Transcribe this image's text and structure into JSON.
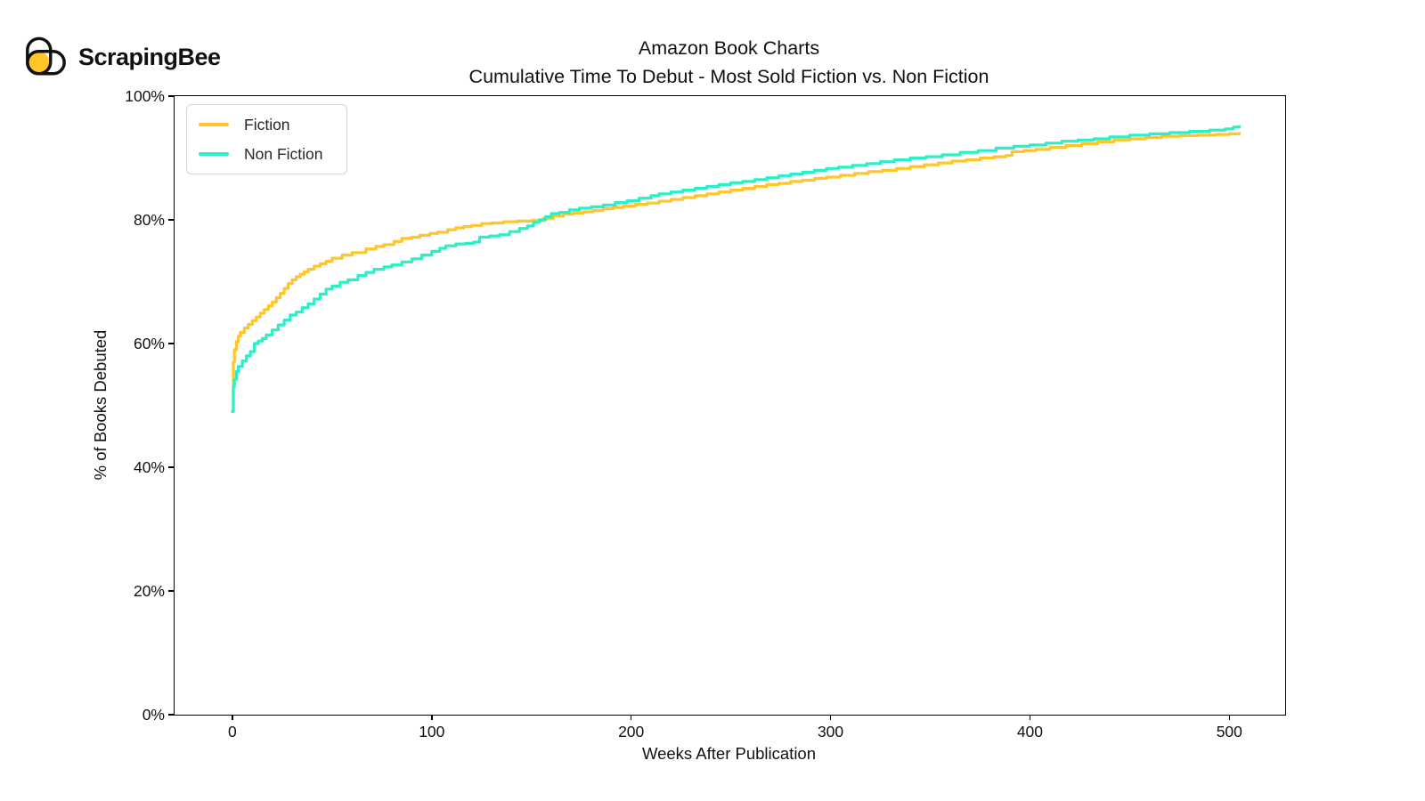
{
  "logo": {
    "text": "ScrapingBee",
    "icon_color": "#FFC52B",
    "outline_color": "#111111"
  },
  "chart_data": {
    "type": "line",
    "title": "Amazon Book Charts",
    "subtitle": "Cumulative Time To Debut - Most Sold Fiction vs. Non Fiction",
    "xlabel": "Weeks After Publication",
    "ylabel": "% of Books Debuted",
    "xlim": [
      -29,
      528
    ],
    "ylim": [
      0,
      100
    ],
    "x_ticks": [
      0,
      100,
      200,
      300,
      400,
      500
    ],
    "y_ticks": [
      0,
      20,
      40,
      60,
      80,
      100
    ],
    "y_tick_suffix": "%",
    "grid": false,
    "legend_position": "upper-left",
    "line_style": "step-post",
    "axis_color": "#000000",
    "series": [
      {
        "name": "Fiction",
        "color": "#FFC52B",
        "points": [
          [
            0,
            49
          ],
          [
            0.5,
            57
          ],
          [
            1,
            59
          ],
          [
            2,
            60.3
          ],
          [
            3,
            61.2
          ],
          [
            4,
            61.8
          ],
          [
            6,
            62.5
          ],
          [
            8,
            63.1
          ],
          [
            10,
            63.7
          ],
          [
            12,
            64.3
          ],
          [
            14,
            64.9
          ],
          [
            16,
            65.5
          ],
          [
            18,
            66.1
          ],
          [
            20,
            66.7
          ],
          [
            22,
            67.4
          ],
          [
            24,
            68.1
          ],
          [
            26,
            68.9
          ],
          [
            28,
            69.7
          ],
          [
            30,
            70.3
          ],
          [
            32,
            70.8
          ],
          [
            34,
            71.2
          ],
          [
            36,
            71.6
          ],
          [
            38,
            72.0
          ],
          [
            41,
            72.5
          ],
          [
            44,
            72.9
          ],
          [
            47,
            73.3
          ],
          [
            50,
            73.8
          ],
          [
            55,
            74.3
          ],
          [
            60,
            74.7
          ],
          [
            67,
            75.3
          ],
          [
            72,
            75.7
          ],
          [
            76,
            76.0
          ],
          [
            81,
            76.5
          ],
          [
            85,
            77.0
          ],
          [
            90,
            77.2
          ],
          [
            94,
            77.5
          ],
          [
            99,
            77.8
          ],
          [
            103,
            78.0
          ],
          [
            108,
            78.4
          ],
          [
            112,
            78.7
          ],
          [
            116,
            78.9
          ],
          [
            120,
            79.1
          ],
          [
            125,
            79.4
          ],
          [
            130,
            79.5
          ],
          [
            136,
            79.7
          ],
          [
            143,
            79.8
          ],
          [
            150,
            79.9
          ],
          [
            156,
            80.2
          ],
          [
            161,
            80.6
          ],
          [
            166,
            80.9
          ],
          [
            171,
            81.1
          ],
          [
            176,
            81.3
          ],
          [
            181,
            81.5
          ],
          [
            186,
            81.8
          ],
          [
            191,
            82.0
          ],
          [
            196,
            82.2
          ],
          [
            202,
            82.5
          ],
          [
            208,
            82.7
          ],
          [
            214,
            83.0
          ],
          [
            220,
            83.3
          ],
          [
            226,
            83.6
          ],
          [
            232,
            83.9
          ],
          [
            238,
            84.2
          ],
          [
            244,
            84.5
          ],
          [
            250,
            84.8
          ],
          [
            256,
            85.1
          ],
          [
            262,
            85.4
          ],
          [
            268,
            85.7
          ],
          [
            274,
            85.9
          ],
          [
            280,
            86.2
          ],
          [
            286,
            86.4
          ],
          [
            292,
            86.7
          ],
          [
            298,
            86.9
          ],
          [
            305,
            87.2
          ],
          [
            312,
            87.5
          ],
          [
            319,
            87.8
          ],
          [
            326,
            88.0
          ],
          [
            333,
            88.3
          ],
          [
            340,
            88.6
          ],
          [
            347,
            88.9
          ],
          [
            354,
            89.2
          ],
          [
            361,
            89.5
          ],
          [
            368,
            89.7
          ],
          [
            375,
            90.0
          ],
          [
            382,
            90.2
          ],
          [
            388,
            90.4
          ],
          [
            391,
            91.0
          ],
          [
            397,
            91.2
          ],
          [
            403,
            91.4
          ],
          [
            410,
            91.7
          ],
          [
            418,
            92.0
          ],
          [
            426,
            92.3
          ],
          [
            434,
            92.6
          ],
          [
            442,
            92.9
          ],
          [
            450,
            93.1
          ],
          [
            458,
            93.3
          ],
          [
            466,
            93.5
          ],
          [
            475,
            93.6
          ],
          [
            484,
            93.7
          ],
          [
            493,
            93.8
          ],
          [
            500,
            93.9
          ],
          [
            505,
            94.0
          ]
        ]
      },
      {
        "name": "Non Fiction",
        "color": "#2BEFC5",
        "points": [
          [
            0,
            49
          ],
          [
            0.5,
            53
          ],
          [
            1,
            54.2
          ],
          [
            2,
            55.5
          ],
          [
            3,
            56.3
          ],
          [
            5,
            57.2
          ],
          [
            7,
            58.0
          ],
          [
            9,
            58.7
          ],
          [
            11,
            60.0
          ],
          [
            13,
            60.4
          ],
          [
            15,
            60.8
          ],
          [
            17,
            61.4
          ],
          [
            20,
            62.2
          ],
          [
            23,
            63.0
          ],
          [
            26,
            63.8
          ],
          [
            29,
            64.6
          ],
          [
            32,
            65.1
          ],
          [
            35,
            65.8
          ],
          [
            38,
            66.4
          ],
          [
            41,
            67.2
          ],
          [
            44,
            68.0
          ],
          [
            47,
            68.8
          ],
          [
            50,
            69.3
          ],
          [
            54,
            69.9
          ],
          [
            58,
            70.3
          ],
          [
            63,
            71.0
          ],
          [
            67,
            71.5
          ],
          [
            71,
            72.0
          ],
          [
            76,
            72.4
          ],
          [
            80,
            72.7
          ],
          [
            85,
            73.2
          ],
          [
            90,
            73.7
          ],
          [
            95,
            74.3
          ],
          [
            100,
            74.9
          ],
          [
            104,
            75.4
          ],
          [
            107,
            75.8
          ],
          [
            112,
            76.1
          ],
          [
            117,
            76.2
          ],
          [
            121,
            76.4
          ],
          [
            124,
            77.2
          ],
          [
            129,
            77.4
          ],
          [
            134,
            77.6
          ],
          [
            139,
            78.1
          ],
          [
            144,
            78.6
          ],
          [
            148,
            79.0
          ],
          [
            151,
            79.6
          ],
          [
            154,
            80.0
          ],
          [
            157,
            80.5
          ],
          [
            160,
            81.0
          ],
          [
            164,
            81.2
          ],
          [
            169,
            81.6
          ],
          [
            174,
            81.9
          ],
          [
            180,
            82.1
          ],
          [
            186,
            82.4
          ],
          [
            192,
            82.8
          ],
          [
            198,
            83.1
          ],
          [
            204,
            83.5
          ],
          [
            210,
            83.9
          ],
          [
            214,
            84.2
          ],
          [
            220,
            84.5
          ],
          [
            226,
            84.8
          ],
          [
            232,
            85.1
          ],
          [
            238,
            85.4
          ],
          [
            244,
            85.7
          ],
          [
            250,
            86.0
          ],
          [
            256,
            86.2
          ],
          [
            262,
            86.5
          ],
          [
            268,
            86.8
          ],
          [
            274,
            87.1
          ],
          [
            280,
            87.4
          ],
          [
            286,
            87.7
          ],
          [
            292,
            88.0
          ],
          [
            298,
            88.3
          ],
          [
            304,
            88.5
          ],
          [
            311,
            88.8
          ],
          [
            318,
            89.1
          ],
          [
            325,
            89.4
          ],
          [
            332,
            89.7
          ],
          [
            340,
            90.0
          ],
          [
            348,
            90.2
          ],
          [
            356,
            90.5
          ],
          [
            365,
            90.9
          ],
          [
            374,
            91.2
          ],
          [
            383,
            91.6
          ],
          [
            392,
            91.9
          ],
          [
            400,
            92.1
          ],
          [
            408,
            92.4
          ],
          [
            416,
            92.7
          ],
          [
            424,
            92.9
          ],
          [
            432,
            93.1
          ],
          [
            440,
            93.4
          ],
          [
            450,
            93.7
          ],
          [
            460,
            93.9
          ],
          [
            470,
            94.1
          ],
          [
            480,
            94.3
          ],
          [
            490,
            94.5
          ],
          [
            498,
            94.7
          ],
          [
            502,
            95.0
          ],
          [
            505,
            95.1
          ]
        ]
      }
    ]
  }
}
